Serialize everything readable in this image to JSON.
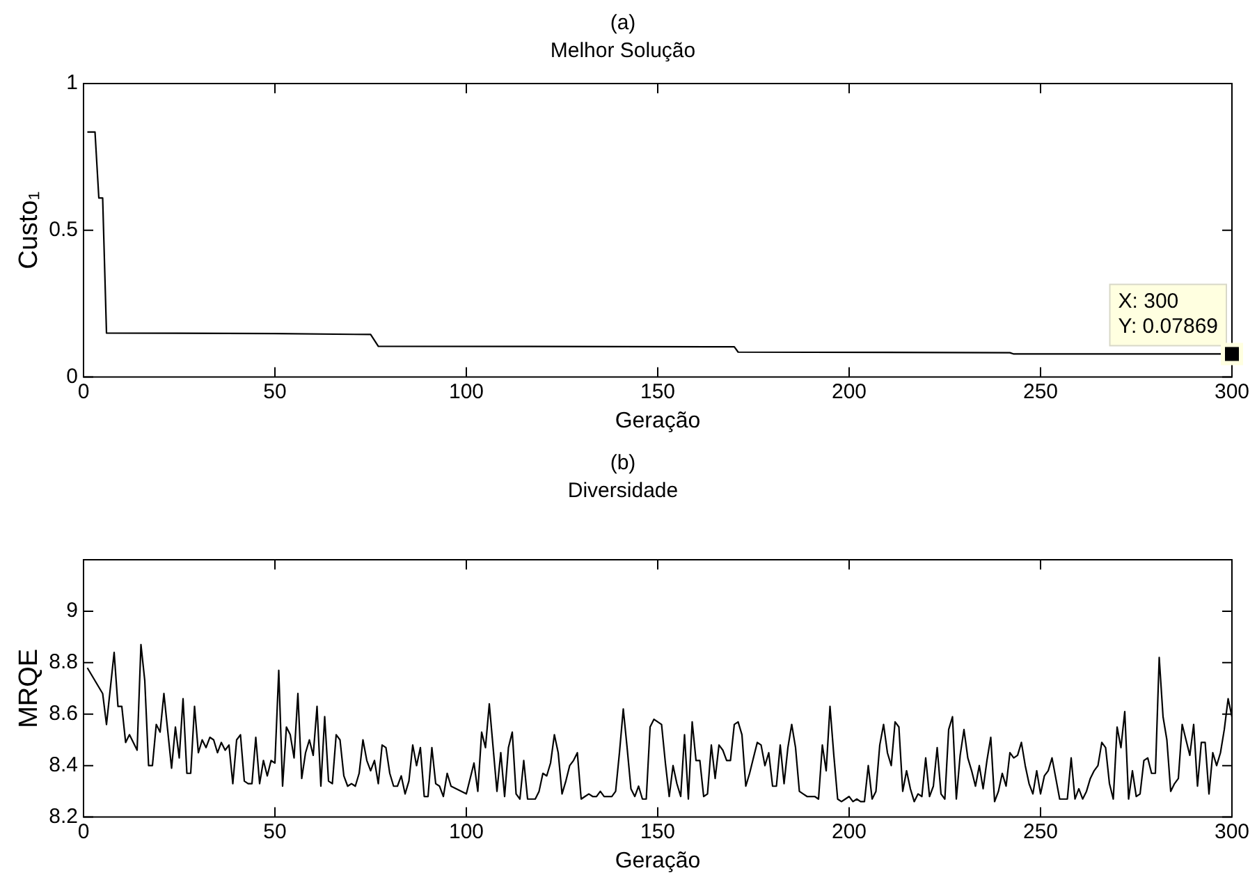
{
  "chart_data": [
    {
      "type": "line",
      "title": "(a)",
      "subtitle": "Melhor Solução",
      "xlabel": "Geração",
      "ylabel": "Custo₁",
      "grid": false,
      "legend": false,
      "marker": "none",
      "line_style": "solid",
      "xlim": [
        0,
        300
      ],
      "ylim": [
        0,
        1
      ],
      "xticks": [
        0,
        50,
        100,
        150,
        200,
        250,
        300
      ],
      "yticks": [
        0,
        0.5,
        1
      ],
      "annotations": [
        {
          "text": "X: 300\nY: 0.07869",
          "x": 300,
          "y": 0.07869
        }
      ],
      "series": [
        {
          "color": "#000000",
          "x": [
            1,
            3,
            4,
            5,
            6,
            50,
            75,
            77,
            170,
            171,
            242,
            243,
            300
          ],
          "values": [
            0.835,
            0.835,
            0.61,
            0.61,
            0.15,
            0.148,
            0.145,
            0.105,
            0.103,
            0.085,
            0.083,
            0.07869,
            0.07869
          ]
        }
      ]
    },
    {
      "type": "line",
      "title": "(b)",
      "subtitle": "Diversidade",
      "xlabel": "Geração",
      "ylabel": "MRQE",
      "grid": false,
      "legend": false,
      "marker": "none",
      "line_style": "solid",
      "xlim": [
        0,
        300
      ],
      "ylim": [
        8.2,
        9.2
      ],
      "xticks": [
        0,
        50,
        100,
        150,
        200,
        250,
        300
      ],
      "yticks": [
        8.2,
        8.4,
        8.6,
        8.8,
        9
      ],
      "series": [
        {
          "color": "#000000",
          "x": [
            1,
            5,
            6,
            8,
            9,
            10,
            11,
            12,
            14,
            15,
            16,
            17,
            18,
            19,
            20,
            21,
            23,
            24,
            25,
            26,
            27,
            28,
            29,
            30,
            31,
            32,
            33,
            34,
            35,
            36,
            37,
            38,
            39,
            40,
            41,
            42,
            43,
            44,
            45,
            46,
            47,
            48,
            49,
            50,
            51,
            52,
            53,
            54,
            55,
            56,
            57,
            58,
            59,
            60,
            61,
            62,
            63,
            64,
            65,
            66,
            67,
            68,
            69,
            70,
            71,
            72,
            73,
            74,
            75,
            76,
            77,
            78,
            79,
            80,
            81,
            82,
            83,
            84,
            85,
            86,
            87,
            88,
            89,
            90,
            91,
            92,
            93,
            94,
            95,
            96,
            100,
            101,
            102,
            103,
            104,
            105,
            106,
            107,
            108,
            109,
            110,
            111,
            112,
            113,
            114,
            115,
            116,
            117,
            118,
            119,
            120,
            121,
            122,
            123,
            124,
            125,
            126,
            127,
            128,
            129,
            130,
            131,
            132,
            133,
            134,
            135,
            136,
            137,
            138,
            139,
            140,
            141,
            142,
            143,
            144,
            145,
            146,
            147,
            148,
            149,
            150,
            151,
            152,
            153,
            154,
            155,
            156,
            157,
            158,
            159,
            160,
            161,
            162,
            163,
            164,
            165,
            166,
            167,
            168,
            169,
            170,
            171,
            172,
            173,
            174,
            175,
            176,
            177,
            178,
            179,
            180,
            181,
            182,
            183,
            184,
            185,
            186,
            187,
            188,
            189,
            190,
            191,
            192,
            193,
            194,
            195,
            196,
            197,
            198,
            199,
            200,
            201,
            202,
            203,
            204,
            205,
            206,
            207,
            208,
            209,
            210,
            211,
            212,
            213,
            214,
            215,
            216,
            217,
            218,
            219,
            220,
            221,
            222,
            223,
            224,
            225,
            226,
            227,
            228,
            229,
            230,
            231,
            232,
            233,
            234,
            235,
            236,
            237,
            238,
            239,
            240,
            241,
            242,
            243,
            244,
            245,
            246,
            247,
            248,
            249,
            250,
            251,
            252,
            253,
            254,
            255,
            256,
            257,
            258,
            259,
            260,
            261,
            262,
            263,
            264,
            265,
            266,
            267,
            268,
            269,
            270,
            271,
            272,
            273,
            274,
            275,
            276,
            277,
            278,
            279,
            280,
            281,
            282,
            283,
            284,
            285,
            286,
            287,
            288,
            289,
            290,
            291,
            292,
            293,
            294,
            295,
            296,
            297,
            298,
            299,
            300
          ],
          "values": [
            8.78,
            8.68,
            8.56,
            8.84,
            8.63,
            8.63,
            8.49,
            8.52,
            8.46,
            8.87,
            8.73,
            8.4,
            8.4,
            8.56,
            8.53,
            8.68,
            8.39,
            8.55,
            8.43,
            8.66,
            8.37,
            8.37,
            8.63,
            8.45,
            8.5,
            8.47,
            8.51,
            8.5,
            8.45,
            8.49,
            8.46,
            8.48,
            8.33,
            8.5,
            8.52,
            8.34,
            8.33,
            8.33,
            8.51,
            8.33,
            8.42,
            8.36,
            8.42,
            8.41,
            8.77,
            8.32,
            8.55,
            8.52,
            8.43,
            8.68,
            8.35,
            8.45,
            8.5,
            8.44,
            8.63,
            8.32,
            8.59,
            8.34,
            8.33,
            8.52,
            8.5,
            8.36,
            8.32,
            8.33,
            8.32,
            8.37,
            8.5,
            8.42,
            8.38,
            8.42,
            8.33,
            8.48,
            8.47,
            8.37,
            8.32,
            8.32,
            8.36,
            8.29,
            8.34,
            8.48,
            8.4,
            8.47,
            8.28,
            8.28,
            8.47,
            8.33,
            8.32,
            8.28,
            8.37,
            8.32,
            8.29,
            8.35,
            8.41,
            8.3,
            8.53,
            8.47,
            8.64,
            8.47,
            8.3,
            8.45,
            8.28,
            8.47,
            8.53,
            8.29,
            8.27,
            8.42,
            8.27,
            8.27,
            8.27,
            8.3,
            8.37,
            8.36,
            8.41,
            8.52,
            8.45,
            8.29,
            8.34,
            8.4,
            8.42,
            8.45,
            8.27,
            8.28,
            8.29,
            8.28,
            8.28,
            8.3,
            8.28,
            8.28,
            8.28,
            8.3,
            8.45,
            8.62,
            8.47,
            8.31,
            8.28,
            8.32,
            8.27,
            8.27,
            8.55,
            8.58,
            8.57,
            8.56,
            8.41,
            8.28,
            8.4,
            8.33,
            8.28,
            8.52,
            8.27,
            8.57,
            8.42,
            8.42,
            8.28,
            8.29,
            8.48,
            8.35,
            8.48,
            8.46,
            8.42,
            8.42,
            8.56,
            8.57,
            8.52,
            8.32,
            8.37,
            8.43,
            8.49,
            8.48,
            8.4,
            8.45,
            8.32,
            8.32,
            8.48,
            8.33,
            8.47,
            8.56,
            8.47,
            8.3,
            8.29,
            8.28,
            8.28,
            8.28,
            8.27,
            8.48,
            8.38,
            8.63,
            8.44,
            8.27,
            8.26,
            8.27,
            8.28,
            8.26,
            8.27,
            8.26,
            8.26,
            8.4,
            8.27,
            8.3,
            8.48,
            8.56,
            8.45,
            8.4,
            8.57,
            8.55,
            8.3,
            8.38,
            8.31,
            8.26,
            8.29,
            8.28,
            8.43,
            8.28,
            8.32,
            8.47,
            8.29,
            8.27,
            8.54,
            8.59,
            8.27,
            8.44,
            8.54,
            8.43,
            8.38,
            8.32,
            8.4,
            8.31,
            8.42,
            8.51,
            8.26,
            8.3,
            8.37,
            8.32,
            8.45,
            8.43,
            8.44,
            8.49,
            8.4,
            8.33,
            8.29,
            8.38,
            8.29,
            8.36,
            8.38,
            8.43,
            8.35,
            8.27,
            8.27,
            8.27,
            8.43,
            8.27,
            8.31,
            8.27,
            8.3,
            8.35,
            8.38,
            8.4,
            8.49,
            8.47,
            8.33,
            8.27,
            8.55,
            8.47,
            8.61,
            8.27,
            8.38,
            8.28,
            8.29,
            8.42,
            8.43,
            8.37,
            8.37,
            8.82,
            8.59,
            8.5,
            8.3,
            8.33,
            8.35,
            8.56,
            8.5,
            8.44,
            8.56,
            8.32,
            8.49,
            8.49,
            8.29,
            8.45,
            8.4,
            8.45,
            8.54,
            8.66,
            8.59
          ]
        }
      ]
    }
  ]
}
